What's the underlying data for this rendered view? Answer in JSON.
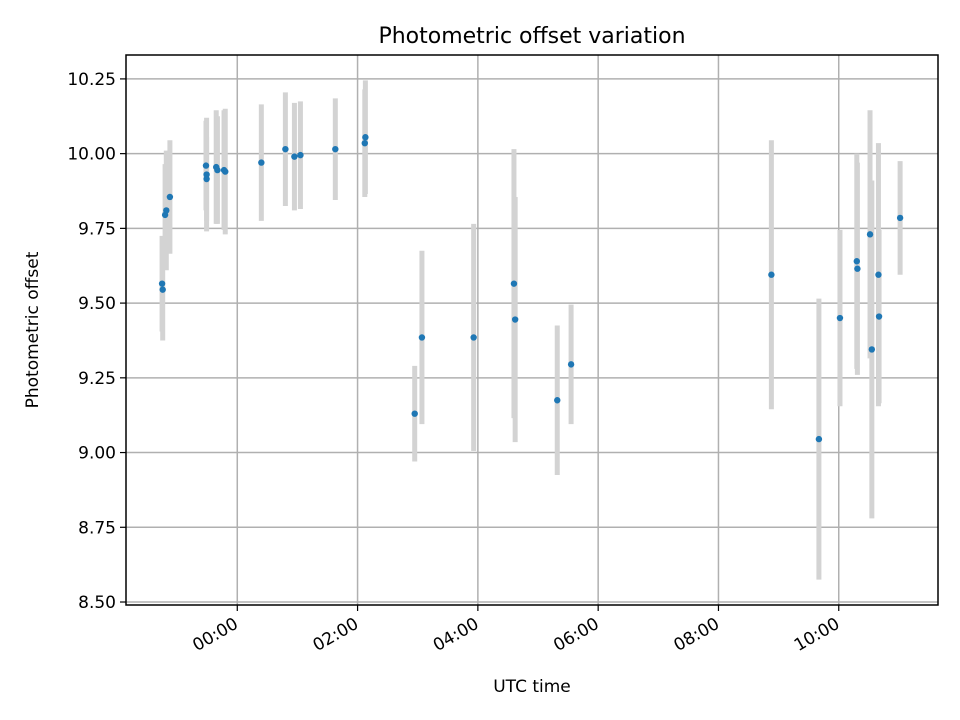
{
  "chart_data": {
    "type": "scatter",
    "title": "Photometric offset variation",
    "xlabel": "UTC time",
    "ylabel": "Photometric offset",
    "x_axis": {
      "unit": "hours",
      "lim": [
        -1.85,
        11.65
      ],
      "ticks": [
        0,
        2,
        4,
        6,
        8,
        10
      ],
      "tick_labels": [
        "00:00",
        "02:00",
        "04:00",
        "06:00",
        "08:00",
        "10:00"
      ]
    },
    "y_axis": {
      "lim": [
        8.49,
        10.33
      ],
      "ticks": [
        8.5,
        8.75,
        9.0,
        9.25,
        9.5,
        9.75,
        10.0,
        10.25
      ],
      "tick_labels": [
        "8.50",
        "8.75",
        "9.00",
        "9.25",
        "9.50",
        "9.75",
        "10.00",
        "10.25"
      ]
    },
    "grid": true,
    "colors": {
      "points": "#1f77b4",
      "errorbars": "#d3d3d3"
    },
    "points": [
      {
        "x": -1.25,
        "y": 9.565,
        "yerr": 0.16
      },
      {
        "x": -1.24,
        "y": 9.545,
        "yerr": 0.17
      },
      {
        "x": -1.2,
        "y": 9.795,
        "yerr": 0.17
      },
      {
        "x": -1.18,
        "y": 9.81,
        "yerr": 0.2
      },
      {
        "x": -1.12,
        "y": 9.855,
        "yerr": 0.19
      },
      {
        "x": -0.52,
        "y": 9.96,
        "yerr": 0.15
      },
      {
        "x": -0.51,
        "y": 9.93,
        "yerr": 0.19
      },
      {
        "x": -0.51,
        "y": 9.915,
        "yerr": 0.14
      },
      {
        "x": -0.35,
        "y": 9.955,
        "yerr": 0.19
      },
      {
        "x": -0.33,
        "y": 9.945,
        "yerr": 0.18
      },
      {
        "x": -0.22,
        "y": 9.945,
        "yerr": 0.2
      },
      {
        "x": -0.2,
        "y": 9.94,
        "yerr": 0.21
      },
      {
        "x": 0.4,
        "y": 9.97,
        "yerr": 0.195
      },
      {
        "x": 0.8,
        "y": 10.015,
        "yerr": 0.19
      },
      {
        "x": 0.95,
        "y": 9.99,
        "yerr": 0.18
      },
      {
        "x": 1.05,
        "y": 9.995,
        "yerr": 0.18
      },
      {
        "x": 1.63,
        "y": 10.015,
        "yerr": 0.17
      },
      {
        "x": 2.12,
        "y": 10.035,
        "yerr": 0.18
      },
      {
        "x": 2.13,
        "y": 10.055,
        "yerr": 0.19
      },
      {
        "x": 2.95,
        "y": 9.13,
        "yerr": 0.16
      },
      {
        "x": 3.07,
        "y": 9.385,
        "yerr": 0.29
      },
      {
        "x": 3.93,
        "y": 9.385,
        "yerr": 0.38
      },
      {
        "x": 4.6,
        "y": 9.565,
        "yerr": 0.45
      },
      {
        "x": 4.62,
        "y": 9.445,
        "yerr": 0.41
      },
      {
        "x": 5.32,
        "y": 9.175,
        "yerr": 0.25
      },
      {
        "x": 5.55,
        "y": 9.295,
        "yerr": 0.2
      },
      {
        "x": 8.88,
        "y": 9.595,
        "yerr": 0.45
      },
      {
        "x": 9.67,
        "y": 9.045,
        "yerr": 0.47
      },
      {
        "x": 10.02,
        "y": 9.45,
        "yerr": 0.295
      },
      {
        "x": 10.3,
        "y": 9.64,
        "yerr": 0.36
      },
      {
        "x": 10.31,
        "y": 9.615,
        "yerr": 0.355
      },
      {
        "x": 10.52,
        "y": 9.73,
        "yerr": 0.415
      },
      {
        "x": 10.55,
        "y": 9.345,
        "yerr": 0.565
      },
      {
        "x": 10.66,
        "y": 9.595,
        "yerr": 0.44
      },
      {
        "x": 10.67,
        "y": 9.455,
        "yerr": 0.29
      },
      {
        "x": 11.02,
        "y": 9.785,
        "yerr": 0.19
      }
    ]
  }
}
